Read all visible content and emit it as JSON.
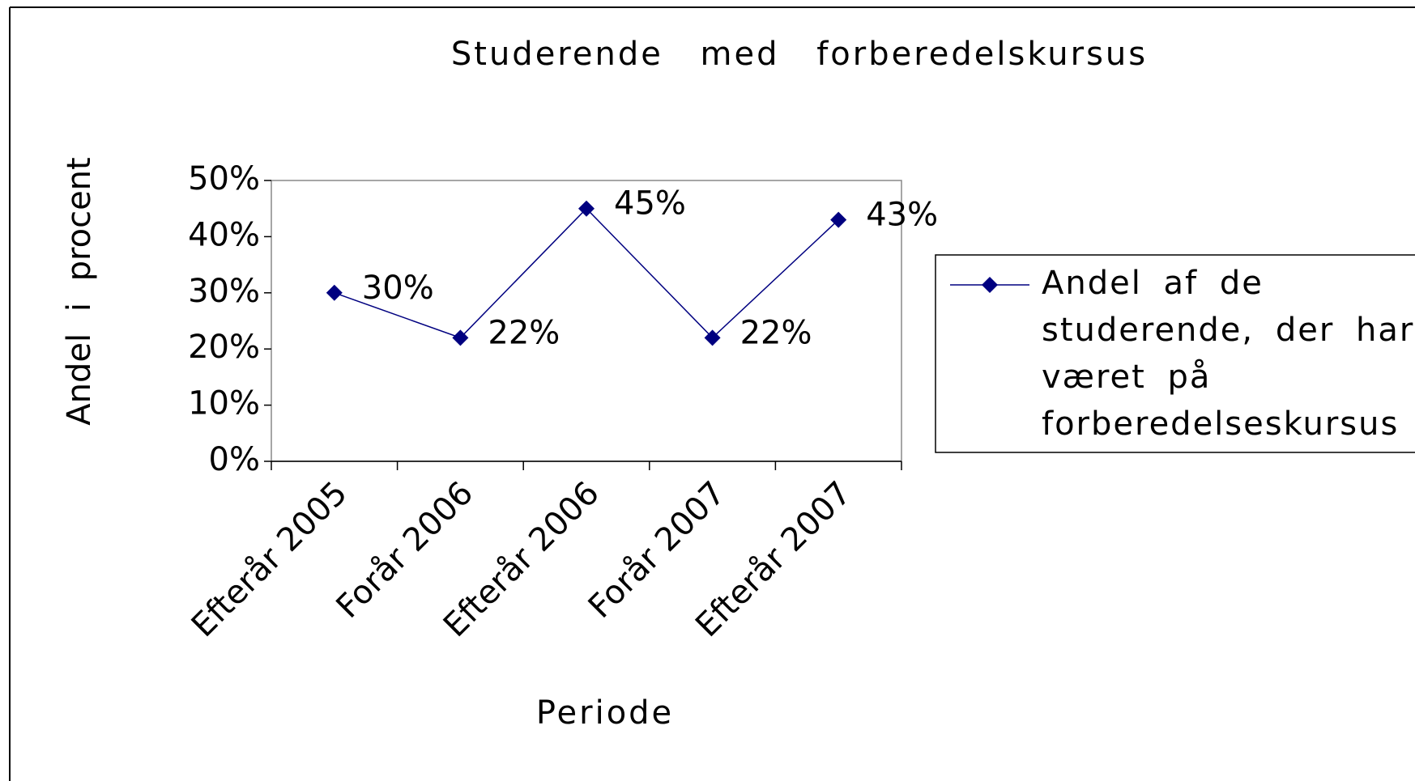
{
  "chart_data": {
    "type": "line",
    "title": "Studerende med forberedelskursus",
    "x_label": "Periode",
    "y_label": "Andel i procent",
    "categories": [
      "Efterår 2005",
      "Forår 2006",
      "Efterår 2006",
      "Forår 2007",
      "Efterår 2007"
    ],
    "series": [
      {
        "name": "Andel af de studerende, der har været på forberedelseskursus",
        "color": "#000080",
        "values": [
          30,
          22,
          45,
          22,
          43
        ],
        "value_labels": [
          "30%",
          "22%",
          "45%",
          "22%",
          "43%"
        ]
      }
    ],
    "ylim": [
      0,
      50
    ],
    "yticks": [
      {
        "value": 0,
        "label": "0%"
      },
      {
        "value": 10,
        "label": "10%"
      },
      {
        "value": 20,
        "label": "20%"
      },
      {
        "value": 30,
        "label": "30%"
      },
      {
        "value": 40,
        "label": "40%"
      },
      {
        "value": 50,
        "label": "50%"
      }
    ],
    "legend": "right",
    "grid": false
  }
}
